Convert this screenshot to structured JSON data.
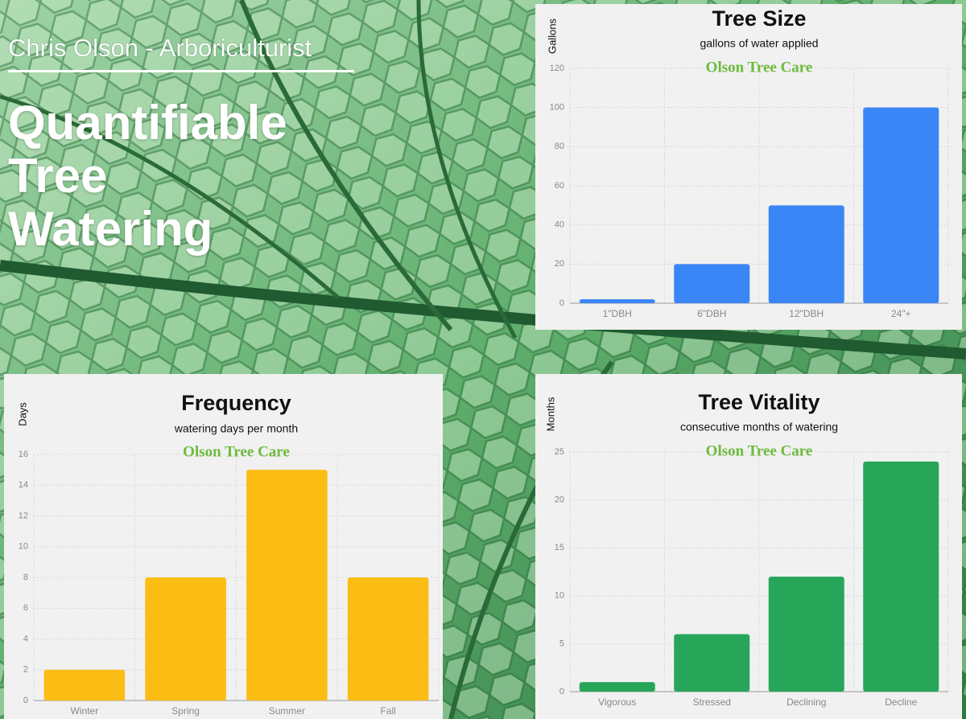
{
  "header": {
    "author": "Chris Olson - Arboriculturist",
    "title_lines": [
      "Quantifiable",
      "Tree",
      "Watering"
    ]
  },
  "chart_data": [
    {
      "type": "bar",
      "title": "Tree Size",
      "subtitle": "gallons of water applied",
      "annotation": "Olson Tree Care",
      "ylabel": "Gallons",
      "categories": [
        "1\"DBH",
        "6\"DBH",
        "12\"DBH",
        "24\"+"
      ],
      "values": [
        2,
        20,
        50,
        100
      ],
      "color": "#3b86f6",
      "ylim": [
        0,
        120
      ],
      "yticks": [
        0,
        20,
        40,
        60,
        80,
        100,
        120
      ],
      "grid": true
    },
    {
      "type": "bar",
      "title": "Frequency",
      "subtitle": "watering days per month",
      "annotation": "Olson Tree Care",
      "ylabel": "Days",
      "categories": [
        "Winter",
        "Spring",
        "Summer",
        "Fall"
      ],
      "values": [
        2,
        8,
        15,
        8
      ],
      "color": "#fbbc14",
      "ylim": [
        0,
        16
      ],
      "yticks": [
        0,
        2,
        4,
        6,
        8,
        10,
        12,
        14,
        16
      ],
      "grid": true
    },
    {
      "type": "bar",
      "title": "Tree Vitality",
      "subtitle": "consecutive months of watering",
      "annotation": "Olson Tree Care",
      "ylabel": "Months",
      "categories": [
        "Vigorous",
        "Stressed",
        "Declining",
        "Decline"
      ],
      "values": [
        1,
        6,
        12,
        24
      ],
      "color": "#27a65a",
      "ylim": [
        0,
        25
      ],
      "yticks": [
        0,
        5,
        10,
        15,
        20,
        25
      ],
      "grid": true
    }
  ]
}
